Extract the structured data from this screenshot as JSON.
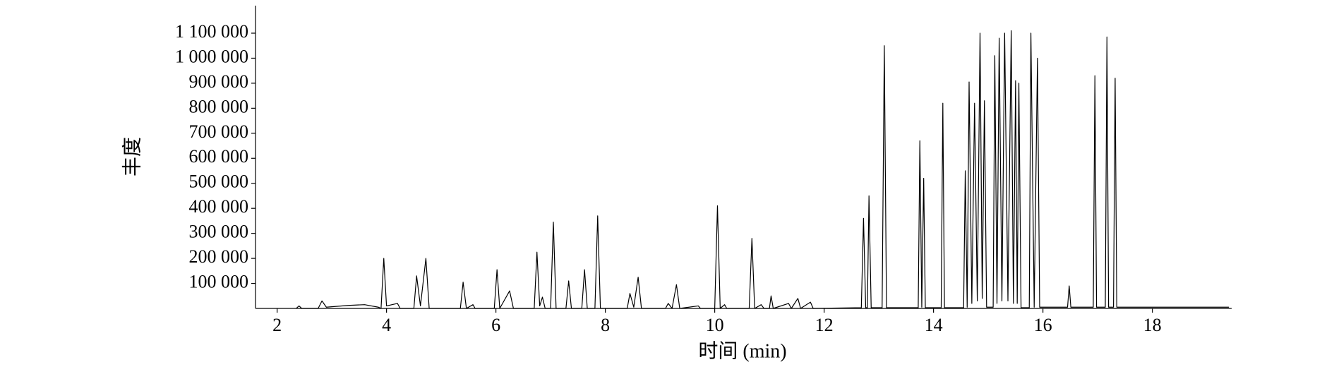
{
  "chart_data": {
    "type": "line",
    "xlabel": "时间 (min)",
    "ylabel": "丰度",
    "color": "#000000",
    "xlim": [
      1.605,
      19.45
    ],
    "xticks": [
      2,
      4,
      6,
      8,
      10,
      12,
      14,
      16,
      18
    ],
    "ylim": [
      0,
      1210000
    ],
    "yticks": [
      {
        "value": 100000,
        "label": "100 000"
      },
      {
        "value": 200000,
        "label": "200 000"
      },
      {
        "value": 300000,
        "label": "300 000"
      },
      {
        "value": 400000,
        "label": "400 000"
      },
      {
        "value": 500000,
        "label": "500 000"
      },
      {
        "value": 600000,
        "label": "600 000"
      },
      {
        "value": 700000,
        "label": "700 000"
      },
      {
        "value": 800000,
        "label": "800 000"
      },
      {
        "value": 900000,
        "label": "900 000"
      },
      {
        "value": 1000000,
        "label": "1 000 000"
      },
      {
        "value": 1100000,
        "label": "1 100 000"
      }
    ],
    "x": [
      2.35,
      2.4,
      2.45,
      2.75,
      2.82,
      2.9,
      3.3,
      3.6,
      3.85,
      3.9,
      3.95,
      4.0,
      4.2,
      4.25,
      4.5,
      4.55,
      4.62,
      4.72,
      4.78,
      5.35,
      5.4,
      5.46,
      5.58,
      5.62,
      5.97,
      6.02,
      6.07,
      6.25,
      6.32,
      6.7,
      6.75,
      6.8,
      6.85,
      6.9,
      7.0,
      7.05,
      7.1,
      7.28,
      7.33,
      7.38,
      7.57,
      7.62,
      7.67,
      7.81,
      7.86,
      7.91,
      8.4,
      8.45,
      8.52,
      8.6,
      8.66,
      9.1,
      9.15,
      9.22,
      9.3,
      9.36,
      9.7,
      9.74,
      10.0,
      10.05,
      10.1,
      10.18,
      10.22,
      10.63,
      10.68,
      10.73,
      10.85,
      10.9,
      11.0,
      11.03,
      11.07,
      11.35,
      11.4,
      11.52,
      11.57,
      11.75,
      11.8,
      12.68,
      12.72,
      12.76,
      12.79,
      12.82,
      12.86,
      13.06,
      13.1,
      13.14,
      13.72,
      13.75,
      13.785,
      13.82,
      13.85,
      14.14,
      14.17,
      14.2,
      14.55,
      14.58,
      14.615,
      14.65,
      14.7,
      14.75,
      14.8,
      14.85,
      14.89,
      14.93,
      14.97,
      15.09,
      15.12,
      15.16,
      15.2,
      15.25,
      15.3,
      15.36,
      15.42,
      15.46,
      15.5,
      15.53,
      15.56,
      15.6,
      15.75,
      15.78,
      15.84,
      15.9,
      15.94,
      16.45,
      16.48,
      16.51,
      16.92,
      16.95,
      16.98,
      17.14,
      17.17,
      17.2,
      17.29,
      17.32,
      17.35,
      19.4
    ],
    "values": [
      0,
      10000,
      0,
      0,
      30000,
      5000,
      12000,
      15000,
      5000,
      0,
      200000,
      10000,
      20000,
      0,
      0,
      130000,
      10000,
      200000,
      0,
      0,
      105000,
      0,
      15000,
      0,
      0,
      155000,
      0,
      70000,
      0,
      0,
      225000,
      10000,
      45000,
      0,
      0,
      345000,
      0,
      0,
      110000,
      0,
      0,
      155000,
      0,
      0,
      370000,
      0,
      0,
      60000,
      5000,
      125000,
      0,
      0,
      20000,
      0,
      95000,
      0,
      10000,
      0,
      0,
      410000,
      0,
      15000,
      0,
      0,
      280000,
      0,
      15000,
      0,
      0,
      50000,
      0,
      20000,
      0,
      40000,
      0,
      25000,
      0,
      3000,
      360000,
      3000,
      3000,
      450000,
      3000,
      3000,
      1050000,
      3000,
      3000,
      670000,
      5000,
      520000,
      3000,
      3000,
      820000,
      3000,
      3000,
      550000,
      5000,
      905000,
      20000,
      820000,
      30000,
      1100000,
      40000,
      830000,
      5000,
      5000,
      1010000,
      20000,
      1080000,
      30000,
      1100000,
      30000,
      1110000,
      20000,
      910000,
      20000,
      900000,
      3000,
      3000,
      1100000,
      5000,
      1000000,
      5000,
      5000,
      90000,
      5000,
      5000,
      930000,
      5000,
      5000,
      1085000,
      5000,
      5000,
      920000,
      5000,
      5000
    ]
  }
}
